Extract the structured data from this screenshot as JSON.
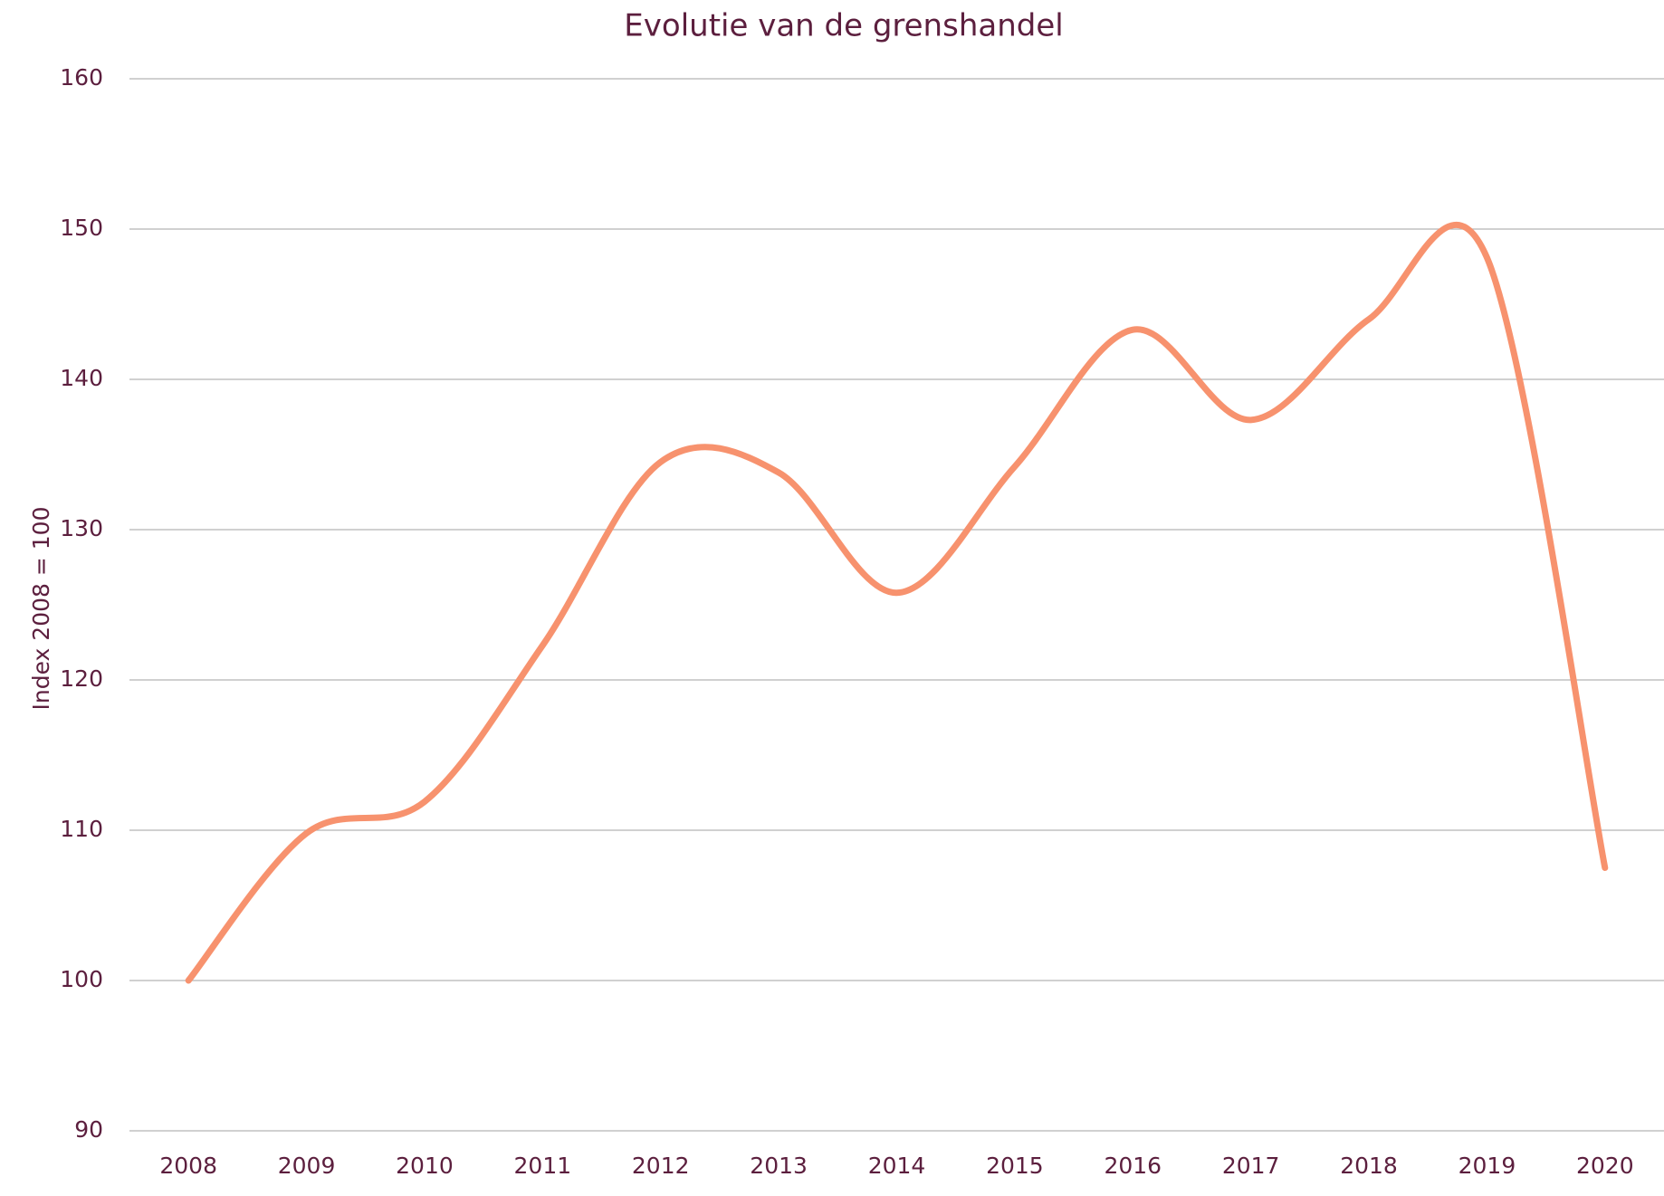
{
  "chart_data": {
    "type": "line",
    "title": "Evolutie van de grenshandel",
    "y_label": "Index 2008 = 100",
    "categories": [
      "2008",
      "2009",
      "2010",
      "2011",
      "2012",
      "2013",
      "2014",
      "2015",
      "2016",
      "2017",
      "2018",
      "2019",
      "2020"
    ],
    "series": [
      {
        "name": "Grenshandel",
        "color": "#f7926e",
        "values": [
          100,
          109.8,
          111.9,
          122.3,
          134.5,
          133.8,
          125.8,
          134.2,
          143.3,
          137.3,
          144.0,
          148.1,
          107.5
        ]
      }
    ],
    "ylim": [
      90,
      160
    ],
    "yticks": [
      90,
      100,
      110,
      120,
      130,
      140,
      150,
      160
    ],
    "grid": true,
    "legend": false
  }
}
